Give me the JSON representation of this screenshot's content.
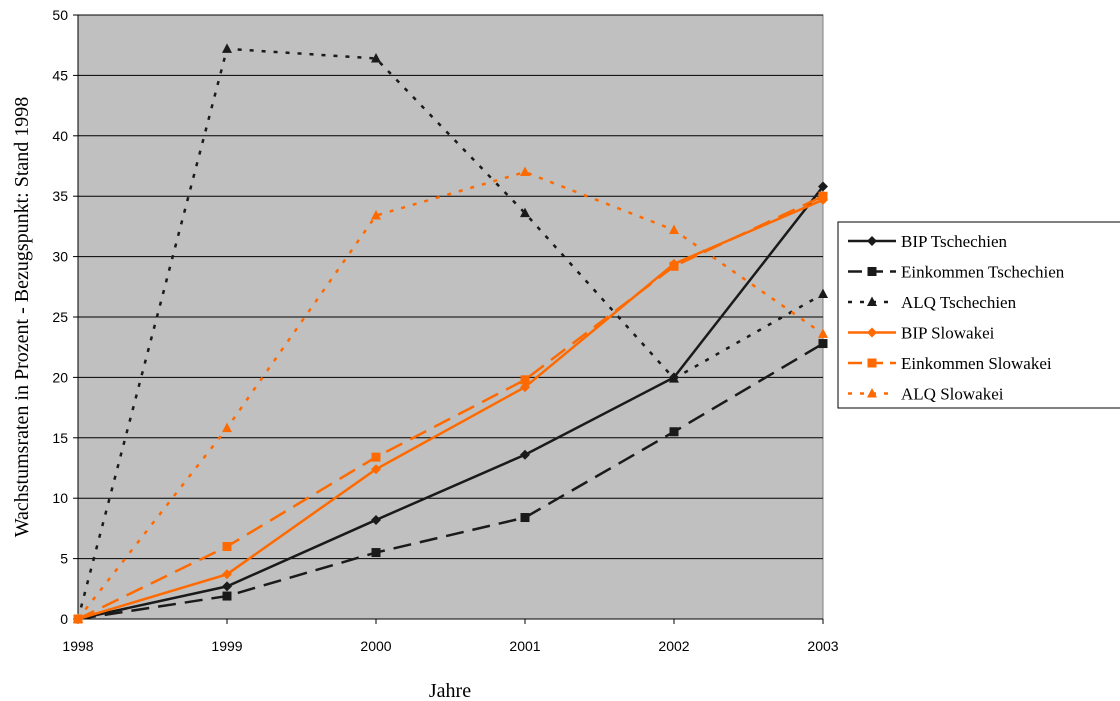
{
  "chart_data": {
    "type": "line",
    "xlabel": "Jahre",
    "ylabel": "Wachstumsraten in Prozent - Bezugspunkt: Stand 1998",
    "x": [
      1998,
      1999,
      2000,
      2001,
      2002,
      2003
    ],
    "ylim": [
      0,
      50
    ],
    "yticks": [
      0,
      5,
      10,
      15,
      20,
      25,
      30,
      35,
      40,
      45,
      50
    ],
    "grid": true,
    "plot_background": "#c0c0c0",
    "legend_position": "right",
    "series": [
      {
        "name": "BIP Tschechien",
        "color": "#1a1a1a",
        "dash": "solid",
        "marker": "diamond",
        "values": [
          0,
          2.7,
          8.2,
          13.6,
          20.0,
          35.8
        ]
      },
      {
        "name": "Einkommen Tschechien",
        "color": "#1a1a1a",
        "dash": "dashed",
        "marker": "square",
        "values": [
          0,
          1.9,
          5.5,
          8.4,
          15.5,
          22.8
        ]
      },
      {
        "name": "ALQ Tschechien",
        "color": "#1a1a1a",
        "dash": "dotted",
        "marker": "triangle",
        "values": [
          0,
          47.2,
          46.4,
          33.6,
          19.9,
          26.9
        ]
      },
      {
        "name": "BIP Slowakei",
        "color": "#ff6a00",
        "dash": "solid",
        "marker": "diamond",
        "values": [
          0,
          3.7,
          12.4,
          19.2,
          29.4,
          34.7
        ]
      },
      {
        "name": "Einkommen Slowakei",
        "color": "#ff6a00",
        "dash": "dashed",
        "marker": "square",
        "values": [
          0,
          6.0,
          13.4,
          19.8,
          29.2,
          35.0
        ]
      },
      {
        "name": "ALQ Slowakei",
        "color": "#ff6a00",
        "dash": "dotted",
        "marker": "triangle",
        "values": [
          0,
          15.8,
          33.4,
          37.0,
          32.2,
          23.6
        ]
      }
    ]
  }
}
